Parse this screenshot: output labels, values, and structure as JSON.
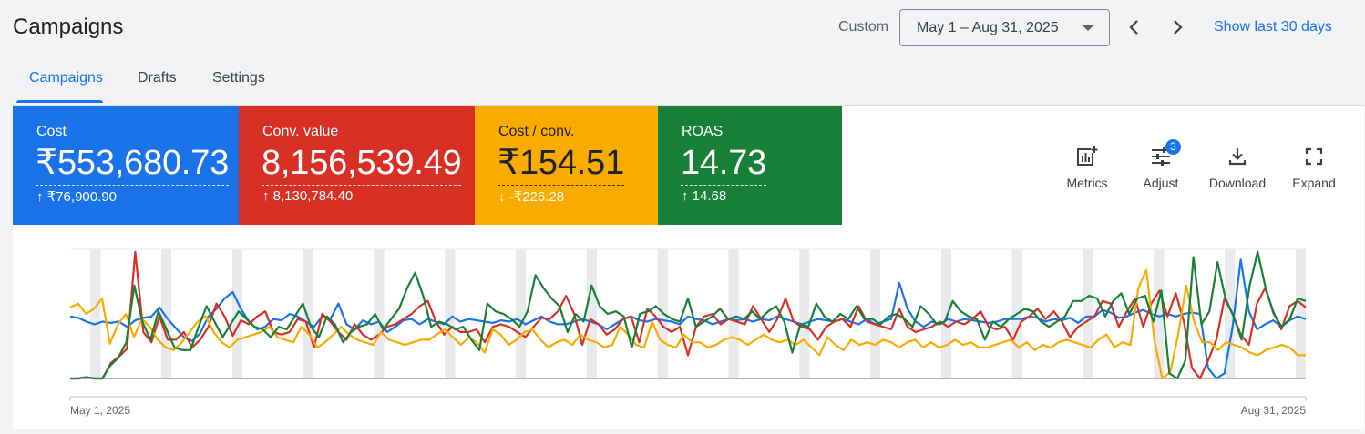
{
  "header": {
    "title": "Campaigns",
    "custom_label": "Custom",
    "date_range": "May 1 – Aug 31, 2025",
    "show_last": "Show last 30 days"
  },
  "tabs": [
    {
      "label": "Campaigns",
      "active": true
    },
    {
      "label": "Drafts",
      "active": false
    },
    {
      "label": "Settings",
      "active": false
    }
  ],
  "metrics": [
    {
      "label": "Cost",
      "value": "₹553,680.73",
      "delta": "₹76,900.90",
      "direction": "up",
      "color": "#1a73e8"
    },
    {
      "label": "Conv. value",
      "value": "8,156,539.49",
      "delta": "8,130,784.40",
      "direction": "up",
      "color": "#d93025"
    },
    {
      "label": "Cost / conv.",
      "value": "₹154.51",
      "delta": "-₹226.28",
      "direction": "down",
      "color": "#f9ab00"
    },
    {
      "label": "ROAS",
      "value": "14.73",
      "delta": "14.68",
      "direction": "up",
      "color": "#188038"
    }
  ],
  "tools": [
    {
      "label": "Metrics",
      "icon": "metrics-icon"
    },
    {
      "label": "Adjust",
      "icon": "adjust-icon",
      "badge": "3"
    },
    {
      "label": "Download",
      "icon": "download-icon"
    },
    {
      "label": "Expand",
      "icon": "expand-icon"
    }
  ],
  "chart_data": {
    "type": "line",
    "x_start": "2025-05-01",
    "x_end": "2025-08-31",
    "x_tick_labels": [
      "May 1, 2025",
      "Aug 31, 2025"
    ],
    "grid": false,
    "weekend_shading": true,
    "normalized_scale": true,
    "series": [
      {
        "metric": "Cost",
        "color": "#1a73e8",
        "values": [
          0.48,
          0.47,
          0.44,
          0.42,
          0.44,
          0.43,
          0.44,
          0.4,
          0.45,
          0.47,
          0.48,
          0.55,
          0.46,
          0.39,
          0.32,
          0.29,
          0.35,
          0.48,
          0.54,
          0.62,
          0.67,
          0.54,
          0.44,
          0.38,
          0.4,
          0.46,
          0.45,
          0.5,
          0.48,
          0.44,
          0.4,
          0.48,
          0.46,
          0.58,
          0.42,
          0.38,
          0.45,
          0.42,
          0.44,
          0.36,
          0.4,
          0.45,
          0.46,
          0.42,
          0.46,
          0.44,
          0.42,
          0.48,
          0.44,
          0.46,
          0.45,
          0.44,
          0.43,
          0.45,
          0.44,
          0.46,
          0.42,
          0.45,
          0.48,
          0.44,
          0.42,
          0.42,
          0.44,
          0.46,
          0.44,
          0.42,
          0.38,
          0.42,
          0.46,
          0.48,
          0.45,
          0.44,
          0.46,
          0.45,
          0.44,
          0.42,
          0.48,
          0.46,
          0.45,
          0.42,
          0.44,
          0.46,
          0.45,
          0.46,
          0.44,
          0.46,
          0.45,
          0.48,
          0.46,
          0.44,
          0.42,
          0.44,
          0.46,
          0.45,
          0.44,
          0.46,
          0.44,
          0.42,
          0.46,
          0.42,
          0.44,
          0.46,
          0.74,
          0.54,
          0.44,
          0.4,
          0.44,
          0.42,
          0.46,
          0.44,
          0.46,
          0.45,
          0.44,
          0.43,
          0.44,
          0.46,
          0.46,
          0.46,
          0.48,
          0.47,
          0.44,
          0.46,
          0.45,
          0.47,
          0.43,
          0.48,
          0.48,
          0.53,
          0.51,
          0.47,
          0.48,
          0.51,
          0.53,
          0.5,
          0.48,
          0.5,
          0.48,
          0.5,
          0.51,
          0.5,
          0.08,
          0.0,
          0.04,
          0.4,
          0.92,
          0.52,
          0.38,
          0.42,
          0.45,
          0.4,
          0.45,
          0.48,
          0.46
        ]
      },
      {
        "metric": "Conv. value",
        "color": "#d93025",
        "values": [
          0.0,
          0.0,
          0.01,
          0.0,
          0.0,
          0.12,
          0.17,
          0.23,
          0.98,
          0.36,
          0.28,
          0.48,
          0.3,
          0.3,
          0.36,
          0.24,
          0.3,
          0.4,
          0.58,
          0.48,
          0.33,
          0.45,
          0.42,
          0.48,
          0.52,
          0.36,
          0.34,
          0.36,
          0.46,
          0.44,
          0.24,
          0.5,
          0.44,
          0.36,
          0.3,
          0.42,
          0.34,
          0.3,
          0.34,
          0.4,
          0.42,
          0.46,
          0.5,
          0.56,
          0.6,
          0.44,
          0.34,
          0.4,
          0.36,
          0.36,
          0.38,
          0.28,
          0.4,
          0.42,
          0.4,
          0.36,
          0.32,
          0.4,
          0.47,
          0.46,
          0.52,
          0.64,
          0.5,
          0.26,
          0.46,
          0.42,
          0.34,
          0.38,
          0.46,
          0.48,
          0.28,
          0.54,
          0.48,
          0.4,
          0.36,
          0.4,
          0.18,
          0.4,
          0.48,
          0.5,
          0.42,
          0.46,
          0.44,
          0.42,
          0.56,
          0.46,
          0.36,
          0.46,
          0.62,
          0.44,
          0.4,
          0.38,
          0.3,
          0.4,
          0.44,
          0.46,
          0.4,
          0.56,
          0.44,
          0.42,
          0.4,
          0.38,
          0.54,
          0.4,
          0.36,
          0.38,
          0.4,
          0.44,
          0.4,
          0.44,
          0.42,
          0.46,
          0.52,
          0.4,
          0.38,
          0.4,
          0.3,
          0.44,
          0.48,
          0.54,
          0.46,
          0.52,
          0.44,
          0.32,
          0.4,
          0.44,
          0.48,
          0.6,
          0.58,
          0.4,
          0.52,
          0.62,
          0.4,
          0.58,
          0.68,
          0.48,
          0.66,
          0.44,
          0.08,
          0.0,
          0.14,
          0.3,
          0.62,
          0.5,
          0.34,
          0.26,
          0.58,
          0.7,
          0.52,
          0.38,
          0.56,
          0.6,
          0.55
        ]
      },
      {
        "metric": "Cost / conv.",
        "color": "#f9ab00",
        "values": [
          0.55,
          0.58,
          0.5,
          0.54,
          0.62,
          0.27,
          0.42,
          0.5,
          0.32,
          0.46,
          0.4,
          0.3,
          0.24,
          0.22,
          0.28,
          0.36,
          0.44,
          0.48,
          0.36,
          0.28,
          0.24,
          0.3,
          0.32,
          0.34,
          0.36,
          0.4,
          0.32,
          0.3,
          0.28,
          0.4,
          0.34,
          0.24,
          0.28,
          0.34,
          0.4,
          0.34,
          0.3,
          0.28,
          0.26,
          0.36,
          0.3,
          0.28,
          0.26,
          0.28,
          0.3,
          0.3,
          0.34,
          0.38,
          0.32,
          0.26,
          0.32,
          0.28,
          0.2,
          0.38,
          0.34,
          0.26,
          0.3,
          0.36,
          0.38,
          0.3,
          0.24,
          0.28,
          0.3,
          0.26,
          0.34,
          0.3,
          0.28,
          0.24,
          0.26,
          0.4,
          0.34,
          0.26,
          0.24,
          0.44,
          0.3,
          0.26,
          0.24,
          0.34,
          0.28,
          0.28,
          0.24,
          0.26,
          0.3,
          0.32,
          0.3,
          0.26,
          0.3,
          0.34,
          0.3,
          0.28,
          0.3,
          0.26,
          0.3,
          0.24,
          0.18,
          0.32,
          0.26,
          0.22,
          0.3,
          0.26,
          0.28,
          0.26,
          0.3,
          0.28,
          0.24,
          0.28,
          0.3,
          0.24,
          0.28,
          0.24,
          0.26,
          0.3,
          0.26,
          0.28,
          0.24,
          0.24,
          0.26,
          0.28,
          0.3,
          0.24,
          0.28,
          0.22,
          0.26,
          0.24,
          0.28,
          0.3,
          0.28,
          0.26,
          0.24,
          0.3,
          0.34,
          0.24,
          0.28,
          0.26,
          0.7,
          0.84,
          0.3,
          0.0,
          0.05,
          0.34,
          0.72,
          0.44,
          0.28,
          0.28,
          0.22,
          0.28,
          0.26,
          0.24,
          0.2,
          0.18,
          0.22,
          0.24,
          0.26,
          0.24,
          0.18,
          0.18
        ]
      },
      {
        "metric": "ROAS",
        "color": "#188038",
        "values": [
          0.0,
          0.0,
          0.01,
          0.0,
          0.0,
          0.1,
          0.16,
          0.28,
          0.72,
          0.44,
          0.3,
          0.52,
          0.38,
          0.24,
          0.22,
          0.22,
          0.4,
          0.56,
          0.44,
          0.32,
          0.42,
          0.52,
          0.46,
          0.4,
          0.38,
          0.32,
          0.4,
          0.38,
          0.48,
          0.58,
          0.4,
          0.32,
          0.48,
          0.42,
          0.28,
          0.36,
          0.4,
          0.42,
          0.5,
          0.38,
          0.46,
          0.54,
          0.7,
          0.82,
          0.64,
          0.4,
          0.44,
          0.42,
          0.38,
          0.4,
          0.3,
          0.22,
          0.58,
          0.52,
          0.5,
          0.46,
          0.4,
          0.52,
          0.8,
          0.7,
          0.62,
          0.56,
          0.36,
          0.5,
          0.44,
          0.72,
          0.56,
          0.5,
          0.52,
          0.48,
          0.24,
          0.5,
          0.52,
          0.56,
          0.5,
          0.46,
          0.44,
          0.62,
          0.4,
          0.44,
          0.48,
          0.54,
          0.46,
          0.48,
          0.46,
          0.52,
          0.46,
          0.52,
          0.56,
          0.44,
          0.2,
          0.42,
          0.4,
          0.58,
          0.48,
          0.44,
          0.5,
          0.46,
          0.56,
          0.46,
          0.46,
          0.42,
          0.48,
          0.5,
          0.46,
          0.4,
          0.56,
          0.5,
          0.42,
          0.44,
          0.6,
          0.52,
          0.48,
          0.46,
          0.3,
          0.44,
          0.4,
          0.46,
          0.5,
          0.54,
          0.52,
          0.44,
          0.4,
          0.44,
          0.48,
          0.6,
          0.6,
          0.64,
          0.62,
          0.48,
          0.6,
          0.66,
          0.5,
          0.62,
          0.64,
          0.44,
          0.68,
          0.04,
          0.0,
          0.14,
          0.94,
          0.42,
          0.52,
          0.9,
          0.62,
          0.48,
          0.3,
          0.72,
          0.98,
          0.7,
          0.5,
          0.4,
          0.46,
          0.62,
          0.6
        ]
      }
    ]
  }
}
